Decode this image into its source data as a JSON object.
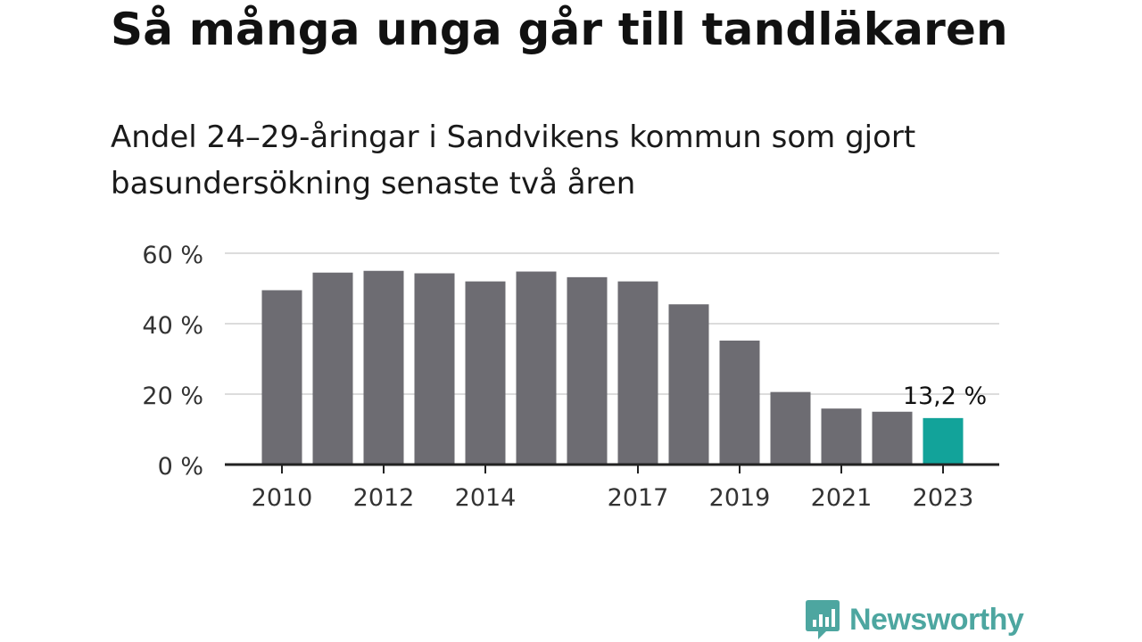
{
  "header": {
    "title": "Så många unga går till tandläkaren",
    "subtitle": "Andel 24–29-åringar i Sandvikens kommun som gjort basundersökning senaste två åren"
  },
  "branding": {
    "name": "Newsworthy",
    "color": "#4da6a0"
  },
  "colors": {
    "bar": "#6d6c72",
    "highlight": "#12a39a",
    "grid": "#dcdcdc",
    "axis": "#222222",
    "tick_text": "#333333"
  },
  "chart_data": {
    "type": "bar",
    "categories": [
      "2010",
      "2011",
      "2012",
      "2013",
      "2014",
      "2015",
      "2016",
      "2017",
      "2018",
      "2019",
      "2020",
      "2021",
      "2022",
      "2023"
    ],
    "values": [
      49.5,
      54.5,
      55.0,
      54.3,
      52.0,
      54.8,
      53.2,
      52.0,
      45.5,
      35.2,
      20.6,
      15.9,
      15.0,
      13.2
    ],
    "x_tick_labels": [
      "2010",
      "2012",
      "2014",
      "2017",
      "2019",
      "2021",
      "2023"
    ],
    "y_ticks": [
      0,
      20,
      40,
      60
    ],
    "y_tick_labels": [
      "0 %",
      "20 %",
      "40 %",
      "60 %"
    ],
    "ylim": [
      0,
      60
    ],
    "highlight_index": 13,
    "annotation": "13,2 %",
    "grid": true,
    "title": "Så många unga går till tandläkaren",
    "xlabel": "",
    "ylabel": ""
  }
}
